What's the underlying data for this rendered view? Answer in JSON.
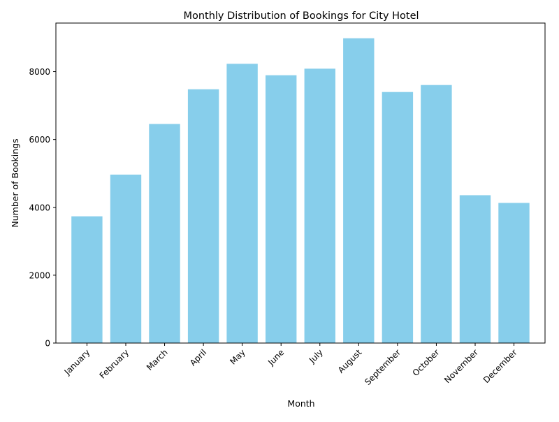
{
  "chart_data": {
    "type": "bar",
    "title": "Monthly Distribution of Bookings for City Hotel",
    "xlabel": "Month",
    "ylabel": "Number of Bookings",
    "categories": [
      "January",
      "February",
      "March",
      "April",
      "May",
      "June",
      "July",
      "August",
      "September",
      "October",
      "November",
      "December"
    ],
    "values": [
      3736,
      4965,
      6458,
      7480,
      8232,
      7894,
      8088,
      8983,
      7400,
      7605,
      4357,
      4132
    ],
    "ylim": [
      0,
      9432
    ],
    "yticks": [
      0,
      2000,
      4000,
      6000,
      8000
    ],
    "bar_color": "#87ceeb",
    "grid": false,
    "legend": "none"
  }
}
